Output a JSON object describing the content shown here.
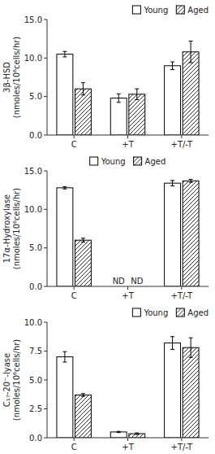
{
  "chart_data": [
    {
      "type": "bar",
      "y_label": "3β-HSD\n(nmoles/10⁶cells/hr)",
      "categories": [
        "C",
        "+T",
        "+T/-T"
      ],
      "series": [
        {
          "name": "Young",
          "color": "#ffffff",
          "values": [
            10.5,
            4.8,
            9.0
          ],
          "errors": [
            0.35,
            0.55,
            0.5
          ]
        },
        {
          "name": "Aged",
          "color": "#ffffff",
          "values": [
            6.0,
            5.3,
            10.8
          ],
          "errors": [
            0.8,
            0.7,
            1.4
          ]
        }
      ],
      "ylim": [
        0.0,
        15.0
      ],
      "yticks": [
        {
          "value": 0.0,
          "label": "0.0"
        },
        {
          "value": 5.0,
          "label": "5.0"
        },
        {
          "value": 10.0,
          "label": "10.0"
        },
        {
          "value": 15.0,
          "label": "15.0"
        }
      ],
      "legend": "upper right",
      "grid": false
    },
    {
      "type": "bar",
      "y_label": "17α-Hydroxylase\n(nmoles/10⁶cells/hr)",
      "categories": [
        "C",
        "+T",
        "+T/-T"
      ],
      "series": [
        {
          "name": "Young",
          "color": "#ffffff",
          "values": [
            12.8,
            0.0,
            13.4
          ],
          "errors": [
            0.15,
            0.0,
            0.35
          ]
        },
        {
          "name": "Aged",
          "color": "#ffffff",
          "values": [
            6.0,
            0.0,
            13.7
          ],
          "errors": [
            0.25,
            0.0,
            0.2
          ]
        }
      ],
      "annotations": [
        {
          "text": "ND",
          "x": "+T",
          "series": "Young",
          "y": 0.25
        },
        {
          "text": "ND",
          "x": "+T",
          "series": "Aged",
          "y": 0.25
        }
      ],
      "ylim": [
        0.0,
        15.0
      ],
      "yticks": [
        {
          "value": 0.0,
          "label": "0.0"
        },
        {
          "value": 5.0,
          "label": "5.0"
        },
        {
          "value": 10.0,
          "label": "10.0"
        },
        {
          "value": 15.0,
          "label": "15.0"
        }
      ],
      "legend": "upper center",
      "grid": false
    },
    {
      "type": "bar",
      "y_label": "C₁₇-20⁻-lyase\n(nmoles/10⁶cells/hr)",
      "categories": [
        "C",
        "+T",
        "+T/-T"
      ],
      "series": [
        {
          "name": "Young",
          "color": "#ffffff",
          "values": [
            7.0,
            0.5,
            8.2
          ],
          "errors": [
            0.45,
            0.05,
            0.55
          ]
        },
        {
          "name": "Aged",
          "color": "#ffffff",
          "values": [
            3.7,
            0.35,
            7.8
          ],
          "errors": [
            0.12,
            0.07,
            0.85
          ]
        }
      ],
      "ylim": [
        0.0,
        10.0
      ],
      "yticks": [
        {
          "value": 0.0,
          "label": "0.0"
        },
        2.5,
        {
          "value": 5.0,
          "label": "5.0"
        },
        7.5,
        {
          "value": 10.0,
          "label": "10.0"
        }
      ],
      "legend": "upper right",
      "grid": false
    }
  ]
}
